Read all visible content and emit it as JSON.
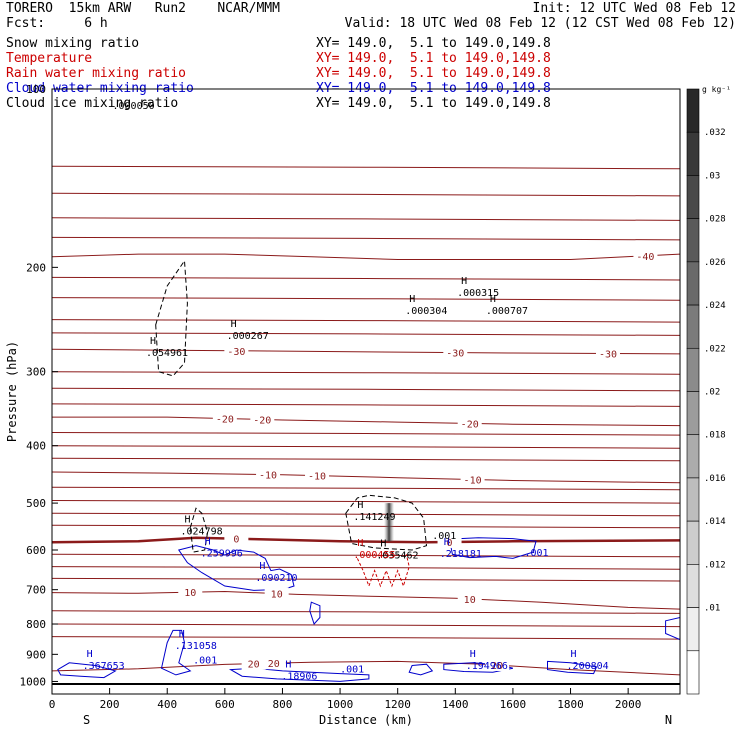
{
  "header": {
    "model": "TORERO  15km ARW   Run2    NCAR/MMM",
    "init": "Init: 12 UTC Wed 08 Feb 12",
    "fcst": "Fcst:     6 h",
    "valid": "Valid: 18 UTC Wed 08 Feb 12 (12 CST Wed 08 Feb 12)"
  },
  "fields": [
    {
      "label": "Snow mixing ratio",
      "xy": "XY= 149.0,  5.1 to 149.0,149.8",
      "color": "#000000"
    },
    {
      "label": "Temperature",
      "xy": "XY= 149.0,  5.1 to 149.0,149.8",
      "color": "#cc0000"
    },
    {
      "label": "Rain water mixing ratio",
      "xy": "XY= 149.0,  5.1 to 149.0,149.8",
      "color": "#cc0000"
    },
    {
      "label": "Cloud water mixing ratio",
      "xy": "XY= 149.0,  5.1 to 149.0,149.8",
      "color": "#0000cc"
    },
    {
      "label": "Cloud ice mixing ratio",
      "xy": "XY= 149.0,  5.1 to 149.0,149.8",
      "color": "#000000"
    }
  ],
  "chart_data": {
    "type": "contour",
    "xlabel": "Distance (km)",
    "ylabel": "Pressure (hPa)",
    "xlim": [
      0,
      2180
    ],
    "ylim": [
      1050,
      100
    ],
    "y_scale": "log",
    "x_ticks": [
      0,
      200,
      400,
      600,
      800,
      1000,
      1200,
      1400,
      1600,
      1800,
      2000
    ],
    "y_ticks": [
      100,
      200,
      300,
      400,
      500,
      600,
      700,
      800,
      900,
      1000
    ],
    "x_end_labels": {
      "left": "S",
      "right": "N"
    },
    "colorbar": {
      "unit": "g kg⁻¹",
      "ticks": [
        ".032",
        ".03",
        ".028",
        ".026",
        ".024",
        ".022",
        ".02",
        ".018",
        ".016",
        ".014",
        ".012",
        ".01"
      ],
      "values": [
        0.033,
        0.032,
        0.03,
        0.028,
        0.026,
        0.024,
        0.022,
        0.02,
        0.018,
        0.016,
        0.014,
        0.012,
        0.01,
        0.008
      ]
    },
    "temperature_isotherms": [
      {
        "value": -40,
        "label": "-40",
        "points": [
          [
            0,
            192
          ],
          [
            300,
            190
          ],
          [
            600,
            190
          ],
          [
            900,
            192
          ],
          [
            1200,
            194
          ],
          [
            1500,
            194
          ],
          [
            1800,
            194
          ],
          [
            2180,
            190
          ]
        ],
        "label_x": [
          2060
        ]
      },
      {
        "value": -30,
        "label": "-30",
        "points": [
          [
            0,
            275
          ],
          [
            400,
            276
          ],
          [
            800,
            277
          ],
          [
            1200,
            278
          ],
          [
            1600,
            279
          ],
          [
            2180,
            280
          ]
        ],
        "label_x": [
          640,
          1400,
          1930
        ]
      },
      {
        "value": -20,
        "label": "-20",
        "points": [
          [
            0,
            358
          ],
          [
            400,
            358
          ],
          [
            800,
            362
          ],
          [
            1200,
            365
          ],
          [
            1600,
            368
          ],
          [
            2180,
            370
          ]
        ],
        "label_x": [
          600,
          730,
          1450
        ]
      },
      {
        "value": -10,
        "label": "-10",
        "points": [
          [
            0,
            443
          ],
          [
            400,
            445
          ],
          [
            800,
            448
          ],
          [
            1200,
            453
          ],
          [
            1600,
            458
          ],
          [
            2180,
            462
          ]
        ],
        "label_x": [
          750,
          920,
          1460
        ]
      },
      {
        "value": 0,
        "label": "0",
        "points": [
          [
            0,
            582
          ],
          [
            300,
            580
          ],
          [
            500,
            572
          ],
          [
            700,
            575
          ],
          [
            1000,
            580
          ],
          [
            1300,
            582
          ],
          [
            1600,
            580
          ],
          [
            2180,
            578
          ]
        ],
        "label_x": [
          640,
          1380
        ]
      },
      {
        "value": 10,
        "label": "10",
        "points": [
          [
            0,
            708
          ],
          [
            300,
            710
          ],
          [
            600,
            705
          ],
          [
            850,
            713
          ],
          [
            1100,
            718
          ],
          [
            1400,
            724
          ],
          [
            1700,
            735
          ],
          [
            2000,
            750
          ],
          [
            2180,
            755
          ]
        ],
        "label_x": [
          480,
          780,
          1450
        ]
      },
      {
        "value": 20,
        "label": "20",
        "points": [
          [
            0,
            960
          ],
          [
            300,
            952
          ],
          [
            600,
            936
          ],
          [
            900,
            928
          ],
          [
            1200,
            925
          ],
          [
            1500,
            935
          ],
          [
            1800,
            955
          ],
          [
            2180,
            975
          ]
        ],
        "label_x": [
          700,
          770,
          1545
        ]
      }
    ],
    "maxima_labels": [
      {
        "x": 340,
        "p": 280,
        "value": ".054961",
        "color": "#000000"
      },
      {
        "x": 620,
        "p": 262,
        "value": ".000267",
        "color": "#000000"
      },
      {
        "x": 1240,
        "p": 238,
        "value": ".000304",
        "color": "#000000"
      },
      {
        "x": 1520,
        "p": 238,
        "value": ".000707",
        "color": "#000000"
      },
      {
        "x": 1060,
        "p": 530,
        "value": ".141249",
        "color": "#000000"
      },
      {
        "x": 460,
        "p": 560,
        "value": ".024798",
        "color": "#000000"
      },
      {
        "x": 1420,
        "p": 222,
        "value": ".000315",
        "color": "#000000"
      },
      {
        "x": 530,
        "p": 610,
        "value": ".259996",
        "color": "#0000cc"
      },
      {
        "x": 1140,
        "p": 615,
        "value": ".035462",
        "color": "#000000"
      },
      {
        "x": 1060,
        "p": 614,
        "value": ".000455",
        "color": "#cc0000"
      },
      {
        "x": 1360,
        "p": 612,
        "value": ".218181",
        "color": "#0000cc"
      },
      {
        "x": 720,
        "p": 672,
        "value": ".090210",
        "color": "#0000cc"
      },
      {
        "x": 440,
        "p": 875,
        "value": ".131058",
        "color": "#0000cc"
      },
      {
        "x": 120,
        "p": 946,
        "value": ".367653",
        "color": "#0000cc"
      },
      {
        "x": 810,
        "p": 985,
        "value": ".18906",
        "color": "#0000cc"
      },
      {
        "x": 1450,
        "p": 946,
        "value": ".194966",
        "color": "#0000cc"
      },
      {
        "x": 1800,
        "p": 946,
        "value": ".200804",
        "color": "#0000cc"
      }
    ],
    "contour_labels": [
      {
        "x": 210,
        "p": 108,
        "value": ".000050",
        "color": "#000000"
      },
      {
        "x": 1320,
        "p": 575,
        "value": ".001",
        "color": "#000000"
      },
      {
        "x": 1640,
        "p": 614,
        "value": ".001",
        "color": "#0000cc"
      },
      {
        "x": 490,
        "p": 932,
        "value": ".001",
        "color": "#0000cc"
      },
      {
        "x": 1000,
        "p": 965,
        "value": ".001",
        "color": "#0000cc"
      }
    ],
    "cloud_water_contours": [
      [
        [
          440,
          600
        ],
        [
          500,
          590
        ],
        [
          560,
          600
        ],
        [
          600,
          612
        ],
        [
          640,
          600
        ],
        [
          700,
          605
        ],
        [
          740,
          620
        ],
        [
          760,
          650
        ],
        [
          790,
          646
        ],
        [
          830,
          660
        ],
        [
          840,
          690
        ],
        [
          800,
          700
        ],
        [
          760,
          700
        ],
        [
          700,
          702
        ],
        [
          600,
          690
        ],
        [
          520,
          655
        ],
        [
          470,
          630
        ],
        [
          440,
          600
        ]
      ],
      [
        [
          1380,
          575
        ],
        [
          1480,
          572
        ],
        [
          1600,
          574
        ],
        [
          1680,
          580
        ],
        [
          1670,
          605
        ],
        [
          1600,
          620
        ],
        [
          1540,
          615
        ],
        [
          1450,
          618
        ],
        [
          1390,
          610
        ],
        [
          1380,
          575
        ]
      ],
      [
        [
          900,
          735
        ],
        [
          930,
          745
        ],
        [
          930,
          780
        ],
        [
          910,
          800
        ],
        [
          895,
          760
        ],
        [
          900,
          735
        ]
      ],
      [
        [
          400,
          860
        ],
        [
          420,
          820
        ],
        [
          450,
          820
        ],
        [
          460,
          860
        ],
        [
          440,
          930
        ],
        [
          480,
          960
        ],
        [
          430,
          975
        ],
        [
          380,
          950
        ],
        [
          400,
          860
        ]
      ],
      [
        [
          20,
          955
        ],
        [
          60,
          930
        ],
        [
          150,
          940
        ],
        [
          220,
          960
        ],
        [
          180,
          985
        ],
        [
          100,
          980
        ],
        [
          30,
          975
        ],
        [
          20,
          955
        ]
      ],
      [
        [
          620,
          955
        ],
        [
          700,
          950
        ],
        [
          800,
          960
        ],
        [
          900,
          965
        ],
        [
          1000,
          970
        ],
        [
          1100,
          975
        ],
        [
          1100,
          990
        ],
        [
          1000,
          1000
        ],
        [
          900,
          995
        ],
        [
          780,
          990
        ],
        [
          660,
          980
        ],
        [
          620,
          955
        ]
      ],
      [
        [
          1250,
          940
        ],
        [
          1300,
          935
        ],
        [
          1320,
          960
        ],
        [
          1280,
          975
        ],
        [
          1240,
          965
        ],
        [
          1250,
          940
        ]
      ],
      [
        [
          1360,
          935
        ],
        [
          1460,
          930
        ],
        [
          1560,
          938
        ],
        [
          1600,
          950
        ],
        [
          1530,
          965
        ],
        [
          1430,
          962
        ],
        [
          1360,
          955
        ],
        [
          1360,
          935
        ]
      ],
      [
        [
          1720,
          925
        ],
        [
          1800,
          930
        ],
        [
          1890,
          945
        ],
        [
          1880,
          970
        ],
        [
          1790,
          965
        ],
        [
          1720,
          955
        ],
        [
          1720,
          925
        ]
      ],
      [
        [
          2130,
          790
        ],
        [
          2180,
          780
        ],
        [
          2180,
          850
        ],
        [
          2130,
          830
        ],
        [
          2130,
          790
        ]
      ]
    ],
    "cloud_ice_contours": [
      [
        [
          360,
          250
        ],
        [
          400,
          215
        ],
        [
          460,
          195
        ],
        [
          470,
          230
        ],
        [
          460,
          290
        ],
        [
          420,
          305
        ],
        [
          370,
          300
        ],
        [
          360,
          250
        ]
      ],
      [
        [
          1020,
          520
        ],
        [
          1060,
          490
        ],
        [
          1100,
          485
        ],
        [
          1190,
          490
        ],
        [
          1250,
          500
        ],
        [
          1290,
          530
        ],
        [
          1300,
          590
        ],
        [
          1250,
          600
        ],
        [
          1120,
          595
        ],
        [
          1040,
          585
        ],
        [
          1020,
          520
        ]
      ],
      [
        [
          480,
          550
        ],
        [
          500,
          510
        ],
        [
          520,
          520
        ],
        [
          540,
          560
        ],
        [
          530,
          600
        ],
        [
          490,
          605
        ],
        [
          480,
          550
        ]
      ]
    ],
    "rain_contours": [
      [
        [
          1060,
          620
        ],
        [
          1080,
          650
        ],
        [
          1100,
          690
        ],
        [
          1120,
          650
        ],
        [
          1140,
          690
        ],
        [
          1160,
          650
        ],
        [
          1180,
          690
        ],
        [
          1200,
          650
        ],
        [
          1220,
          690
        ],
        [
          1240,
          640
        ],
        [
          1230,
          610
        ]
      ]
    ],
    "snow_max_shading": {
      "x": 1170,
      "p_top": 500,
      "p_bottom": 580,
      "value": 0.03
    }
  }
}
